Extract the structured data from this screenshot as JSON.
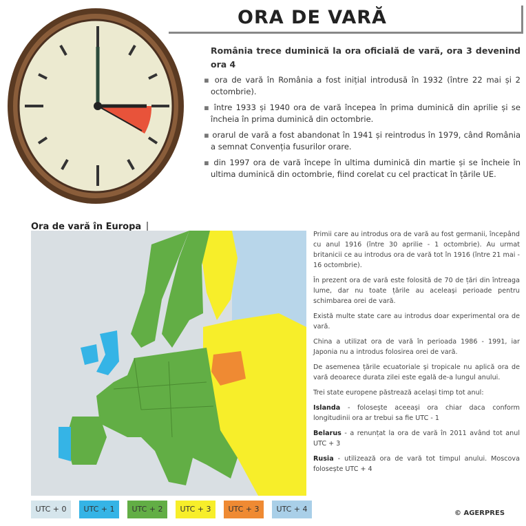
{
  "title": "ORA DE VARĂ",
  "clock": {
    "icon": "wall-clock-icon",
    "highlight_color": "#e8533a"
  },
  "intro": {
    "lead": "România trece duminică la ora oficială de vară, ora 3 devenind ora 4",
    "bullets": [
      "ora de vară în România a fost inițial introdusă în 1932 (între 22 mai și 2 octombrie).",
      "între 1933 și 1940 ora de vară începea în prima duminică din aprilie și se încheia în prima duminică din octombrie.",
      "orarul de vară a fost abandonat în 1941 și reintrodus în 1979, când România a semnat Convenția fusurilor orare.",
      "din 1997 ora de vară începe în ultima duminică din martie și se încheie în ultima duminică din octombrie, fiind corelat cu cel practicat în țările UE."
    ]
  },
  "map": {
    "title": "Ora de vară în Europa"
  },
  "side": {
    "paragraphs": [
      "Primii care au introdus ora de vară au fost germanii, începând cu anul 1916 (între 30 aprilie - 1 octombrie). Au urmat britanicii ce au introdus ora de vară tot în 1916 (între 21 mai - 16 octombrie).",
      "În prezent ora de vară este folosită de 70 de țări din întreaga lume, dar nu toate țările au aceleași perioade pentru schimbarea orei de vară.",
      "Există multe state care au introdus doar experimental ora de vară.",
      "China a utilizat ora de vară în perioada 1986 - 1991, iar Japonia nu a introdus folosirea orei de vară.",
      "De asemenea țările ecuatoriale și tropicale nu aplică ora de vară deoarece durata zilei este egală de-a lungul anului.",
      "Trei state europene păstrează același timp tot anul:"
    ],
    "states": [
      {
        "name": "Islanda",
        "text": " - folosește aceeași ora chiar daca conform longitudinii ora ar trebui sa fie UTC - 1"
      },
      {
        "name": "Belarus",
        "text": " - a renunțat la ora de vară în 2011 având tot anul UTC + 3"
      },
      {
        "name": "Rusia",
        "text": " - utilizează ora de vară tot timpul anului. Moscova folosește UTC + 4"
      }
    ]
  },
  "legend": [
    {
      "label": "UTC + 0",
      "color": "#d5e5ec"
    },
    {
      "label": "UTC + 1",
      "color": "#35b4e6"
    },
    {
      "label": "UTC + 2",
      "color": "#62ae45"
    },
    {
      "label": "UTC + 3",
      "color": "#f7ee2a"
    },
    {
      "label": "UTC + 3",
      "color": "#ef8a33"
    },
    {
      "label": "UTC + 4",
      "color": "#a9cfe8"
    }
  ],
  "copyright": "© AGERPRES"
}
